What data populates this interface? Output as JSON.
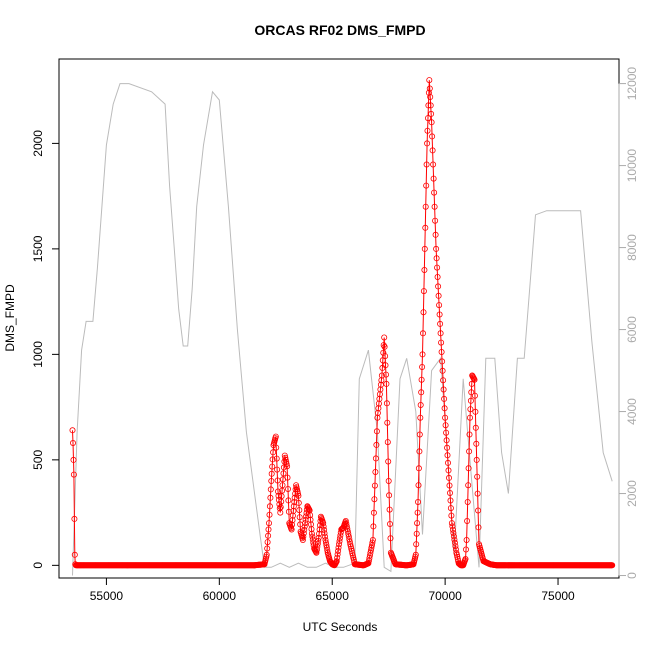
{
  "chart_data": {
    "type": "scatter",
    "title": "ORCAS RF02 DMS_FMPD",
    "xlabel": "UTC Seconds",
    "ylabel": "DMS_FMPD",
    "xlim": [
      52900,
      77700
    ],
    "ylim": [
      -60,
      2400
    ],
    "y2lim": [
      -60,
      12600
    ],
    "x_ticks": [
      55000,
      60000,
      65000,
      70000,
      75000
    ],
    "y_ticks": [
      0,
      500,
      1000,
      1500,
      2000
    ],
    "y2_ticks": [
      0,
      2000,
      4000,
      6000,
      8000,
      10000,
      12000
    ],
    "grid": false,
    "series": [
      {
        "color": "#ff0000",
        "marker": "open-circle",
        "line": "solid",
        "x": [
          53500,
          53520,
          53540,
          53560,
          53580,
          53600,
          53620,
          53650,
          53700,
          54000,
          56000,
          58000,
          60000,
          61500,
          62000,
          62100,
          62200,
          62300,
          62400,
          62500,
          62600,
          62700,
          62800,
          62900,
          63000,
          63100,
          63200,
          63300,
          63400,
          63500,
          63600,
          63700,
          63800,
          63900,
          64000,
          64100,
          64200,
          64300,
          64400,
          64500,
          64600,
          64700,
          64800,
          64900,
          65000,
          65100,
          65200,
          65300,
          65400,
          65500,
          65600,
          65800,
          66000,
          66400,
          66600,
          66800,
          67000,
          67200,
          67300,
          67400,
          67500,
          67600,
          67800,
          68300,
          68600,
          68700,
          68800,
          68900,
          69000,
          69100,
          69200,
          69300,
          69400,
          69600,
          70000,
          70300,
          70500,
          70600,
          70700,
          70800,
          70900,
          70950,
          71000,
          71100,
          71200,
          71300,
          71400,
          71500,
          71700,
          72000,
          72300,
          72400,
          72500,
          72600,
          72700,
          72750,
          72800,
          72900,
          73000,
          73500,
          75000,
          76500,
          77400
        ],
        "y": [
          640,
          580,
          500,
          430,
          220,
          50,
          5,
          0,
          0,
          0,
          0,
          0,
          0,
          0,
          5,
          50,
          200,
          400,
          570,
          610,
          350,
          250,
          380,
          520,
          470,
          200,
          170,
          280,
          380,
          330,
          160,
          120,
          200,
          280,
          260,
          150,
          80,
          60,
          130,
          230,
          200,
          120,
          60,
          20,
          5,
          0,
          20,
          100,
          170,
          180,
          210,
          100,
          5,
          0,
          10,
          120,
          700,
          900,
          1080,
          860,
          400,
          60,
          5,
          0,
          5,
          50,
          300,
          700,
          1000,
          1500,
          2000,
          2300,
          2100,
          1500,
          700,
          200,
          60,
          10,
          0,
          0,
          30,
          120,
          300,
          700,
          900,
          880,
          500,
          100,
          20,
          5,
          0,
          0,
          0,
          0,
          0,
          0,
          0,
          0,
          0,
          0,
          0,
          0,
          0
        ]
      },
      {
        "axis": "right",
        "color": "#bbbbbb",
        "marker": "none",
        "line": "solid",
        "x": [
          53500,
          53700,
          53900,
          54100,
          54400,
          54600,
          54800,
          55000,
          55300,
          55600,
          56000,
          57000,
          57600,
          57800,
          58000,
          58200,
          58400,
          58600,
          58800,
          59000,
          59300,
          59700,
          60000,
          60400,
          60800,
          61200,
          61800,
          62000,
          62300,
          62700,
          63100,
          63500,
          63900,
          64300,
          64700,
          65100,
          65500,
          66000,
          66200,
          66600,
          67000,
          67300,
          67600,
          68000,
          68300,
          68700,
          69000,
          69400,
          69800,
          70100,
          70400,
          70800,
          71100,
          71500,
          71800,
          72200,
          72500,
          72800,
          73200,
          73500,
          74000,
          74500,
          75000,
          75500,
          76000,
          76500,
          77000,
          77400
        ],
        "y": [
          0,
          3500,
          5500,
          6200,
          6200,
          7500,
          9000,
          10500,
          11500,
          12000,
          12000,
          11800,
          11500,
          9500,
          8000,
          6500,
          5600,
          5600,
          7000,
          9000,
          10500,
          11800,
          11600,
          9000,
          6000,
          3500,
          1000,
          200,
          200,
          300,
          200,
          300,
          200,
          200,
          300,
          200,
          200,
          300,
          4800,
          5500,
          3500,
          200,
          100,
          4800,
          5300,
          4000,
          1000,
          5000,
          5300,
          3000,
          500,
          4800,
          2800,
          200,
          5300,
          5300,
          3000,
          2000,
          5300,
          5300,
          8800,
          8900,
          8900,
          8900,
          8900,
          5700,
          3000,
          2300
        ]
      }
    ]
  }
}
